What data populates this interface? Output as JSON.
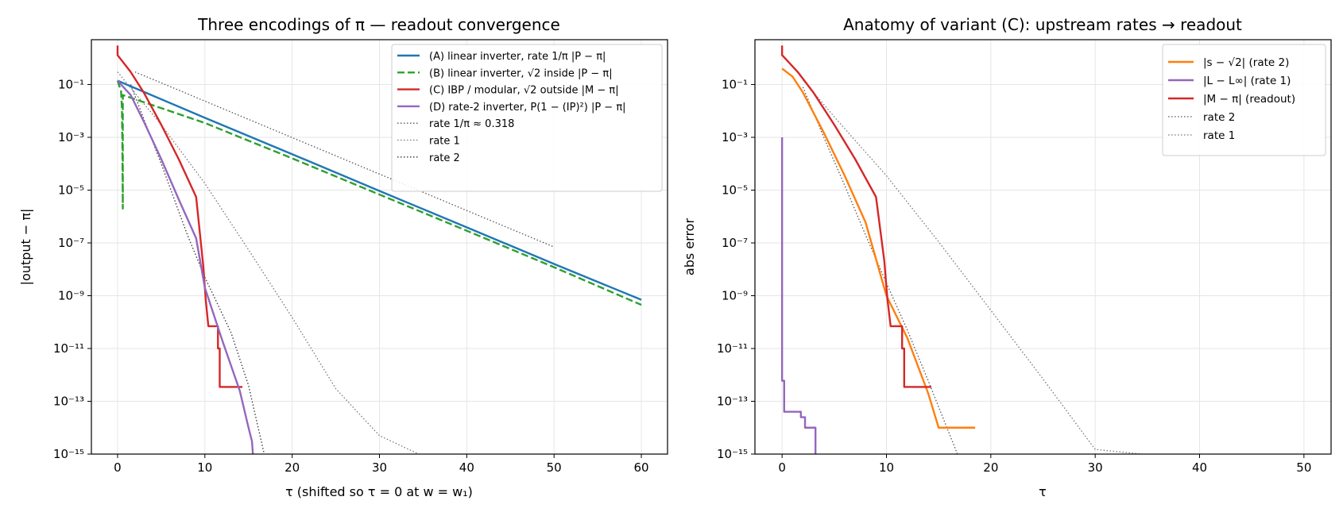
{
  "chart_data": [
    {
      "type": "line",
      "title": "Three encodings of π — readout convergence",
      "xlabel": "τ  (shifted so τ = 0 at w = w₁)",
      "ylabel": "|output − π|",
      "xlim": [
        -3,
        63
      ],
      "ylim": [
        1e-15,
        5
      ],
      "yscale": "log",
      "grid": true,
      "legend_position": "top-right",
      "x_ticks": [
        0,
        10,
        20,
        30,
        40,
        50,
        60
      ],
      "y_ticks": [
        {
          "value": 1e-15,
          "label": "10⁻¹⁵"
        },
        {
          "value": 1e-13,
          "label": "10⁻¹³"
        },
        {
          "value": 1e-11,
          "label": "10⁻¹¹"
        },
        {
          "value": 1e-09,
          "label": "10⁻⁹"
        },
        {
          "value": 1e-07,
          "label": "10⁻⁷"
        },
        {
          "value": 1e-05,
          "label": "10⁻⁵"
        },
        {
          "value": 0.001,
          "label": "10⁻³"
        },
        {
          "value": 0.1,
          "label": "10⁻¹"
        }
      ],
      "series": [
        {
          "name": "(A)  linear inverter, rate 1/π   |P − π|",
          "color": "#1f77b4",
          "style": "solid",
          "points": [
            [
              0,
              0.14
            ],
            [
              10,
              0.0055
            ],
            [
              20,
              0.00023
            ],
            [
              30,
              9.3e-06
            ],
            [
              40,
              3.9e-07
            ],
            [
              50,
              1.6e-08
            ],
            [
              60,
              7e-10
            ]
          ]
        },
        {
          "name": "(B)  linear inverter, √2 inside   |P − π|",
          "color": "#2ca02c",
          "style": "dashed",
          "points": [
            [
              0,
              0.14
            ],
            [
              0.4,
              0.055
            ],
            [
              0.5,
              0.012
            ],
            [
              0.55,
              0.0005
            ],
            [
              0.6,
              2e-06
            ],
            [
              0.6,
              0.0015
            ],
            [
              0.6,
              0.04
            ],
            [
              10,
              0.0035
            ],
            [
              20,
              0.00016
            ],
            [
              30,
              6.8e-06
            ],
            [
              40,
              2.9e-07
            ],
            [
              50,
              1.2e-08
            ],
            [
              60,
              4.5e-10
            ]
          ]
        },
        {
          "name": "(C)  IBP / modular, √2 outside   |M − π|",
          "color": "#d62728",
          "style": "solid",
          "points": [
            [
              0,
              3
            ],
            [
              0,
              1.3
            ],
            [
              0.5,
              0.8
            ],
            [
              1.5,
              0.3
            ],
            [
              3,
              0.05
            ],
            [
              5,
              0.003
            ],
            [
              7,
              0.00015
            ],
            [
              9,
              5.5e-06
            ],
            [
              9.8,
              1.5e-08
            ],
            [
              10,
              2e-09
            ],
            [
              10.1,
              7e-10
            ],
            [
              10.4,
              7e-11
            ],
            [
              11.5,
              7e-11
            ],
            [
              11.5,
              1e-11
            ],
            [
              11.7,
              1e-11
            ],
            [
              11.7,
              3.5e-13
            ],
            [
              14.3,
              3.5e-13
            ]
          ]
        },
        {
          "name": "(D)  rate-2 inverter, P(1 − (IP)²)   |P − π|",
          "color": "#9467bd",
          "style": "solid",
          "points": [
            [
              0,
              0.14
            ],
            [
              1.5,
              0.04
            ],
            [
              3,
              0.004
            ],
            [
              5,
              0.00015
            ],
            [
              7,
              4.5e-06
            ],
            [
              9,
              1.5e-07
            ],
            [
              10,
              2e-09
            ],
            [
              12,
              2e-11
            ],
            [
              14,
              2.5e-13
            ],
            [
              15,
              1e-14
            ],
            [
              15.4,
              3e-15
            ],
            [
              15.5,
              1e-15
            ]
          ]
        },
        {
          "name": "rate 1/π ≈ 0.318",
          "color": "#555555",
          "style": "dotted",
          "points": [
            [
              2,
              0.3
            ],
            [
              50,
              7e-08
            ]
          ]
        },
        {
          "name": "rate 1",
          "color": "#777777",
          "style": "dotted",
          "points": [
            [
              0,
              0.3
            ],
            [
              5,
              0.003
            ],
            [
              10,
              1.8e-05
            ],
            [
              15,
              5.5e-08
            ],
            [
              20,
              1.5e-10
            ],
            [
              25,
              3e-13
            ],
            [
              30,
              5e-15
            ],
            [
              34.5,
              1e-15
            ]
          ]
        },
        {
          "name": "rate 2",
          "color": "#333333",
          "style": "dotted",
          "points": [
            [
              1.5,
              0.1
            ],
            [
              3,
              0.005
            ],
            [
              5,
              0.0001
            ],
            [
              8,
              2e-07
            ],
            [
              10,
              5e-09
            ],
            [
              13,
              4e-11
            ],
            [
              15,
              4e-13
            ],
            [
              16.8,
              1e-15
            ]
          ]
        }
      ]
    },
    {
      "type": "line",
      "title": "Anatomy of variant (C):  upstream rates → readout",
      "xlabel": "τ",
      "ylabel": "abs error",
      "xlim": [
        -2.6,
        52.6
      ],
      "ylim": [
        1e-15,
        5
      ],
      "yscale": "log",
      "grid": true,
      "legend_position": "top-right",
      "x_ticks": [
        0,
        10,
        20,
        30,
        40,
        50
      ],
      "y_ticks": [
        {
          "value": 1e-15,
          "label": "10⁻¹⁵"
        },
        {
          "value": 1e-13,
          "label": "10⁻¹³"
        },
        {
          "value": 1e-11,
          "label": "10⁻¹¹"
        },
        {
          "value": 1e-09,
          "label": "10⁻⁹"
        },
        {
          "value": 1e-07,
          "label": "10⁻⁷"
        },
        {
          "value": 1e-05,
          "label": "10⁻⁵"
        },
        {
          "value": 0.001,
          "label": "10⁻³"
        },
        {
          "value": 0.1,
          "label": "10⁻¹"
        }
      ],
      "series": [
        {
          "name": "|s − √2|  (rate 2)",
          "color": "#ff7f0e",
          "style": "solid",
          "points": [
            [
              0,
              0.4
            ],
            [
              1,
              0.2
            ],
            [
              2,
              0.05
            ],
            [
              4,
              0.0015
            ],
            [
              6,
              3.5e-05
            ],
            [
              8,
              6e-07
            ],
            [
              10,
              1e-09
            ],
            [
              12,
              2.5e-11
            ],
            [
              14,
              2e-13
            ],
            [
              15,
              1e-14
            ],
            [
              15.8,
              1e-14
            ],
            [
              15.8,
              1e-14
            ],
            [
              18.5,
              1e-14
            ]
          ]
        },
        {
          "name": "|L − L∞|  (rate 1)",
          "color": "#9467bd",
          "style": "solid",
          "points": [
            [
              0,
              0.001
            ],
            [
              0,
              6e-13
            ],
            [
              0.2,
              6e-13
            ],
            [
              0.2,
              4e-14
            ],
            [
              1.8,
              4e-14
            ],
            [
              1.8,
              2.5e-14
            ],
            [
              2.2,
              2.5e-14
            ],
            [
              2.2,
              1e-14
            ],
            [
              3.2,
              1e-14
            ],
            [
              3.2,
              1e-15
            ]
          ]
        },
        {
          "name": "|M − π|  (readout)",
          "color": "#d62728",
          "style": "solid",
          "points": [
            [
              0,
              3
            ],
            [
              0,
              1.3
            ],
            [
              0.5,
              0.8
            ],
            [
              1.5,
              0.3
            ],
            [
              3,
              0.05
            ],
            [
              5,
              0.003
            ],
            [
              7,
              0.00015
            ],
            [
              9,
              5.5e-06
            ],
            [
              9.8,
              2e-08
            ],
            [
              10,
              2e-09
            ],
            [
              10.1,
              7e-10
            ],
            [
              10.4,
              7e-11
            ],
            [
              11.5,
              7e-11
            ],
            [
              11.5,
              1e-11
            ],
            [
              11.7,
              1e-11
            ],
            [
              11.7,
              3.5e-13
            ],
            [
              14.3,
              3.5e-13
            ]
          ]
        },
        {
          "name": "rate 2",
          "color": "#555555",
          "style": "dotted",
          "points": [
            [
              2,
              0.08
            ],
            [
              4,
              0.001
            ],
            [
              6,
              1.5e-05
            ],
            [
              8,
              2e-07
            ],
            [
              10,
              3e-09
            ],
            [
              12,
              5e-11
            ],
            [
              14,
              6e-13
            ],
            [
              16.8,
              1e-15
            ]
          ]
        },
        {
          "name": "rate 1",
          "color": "#777777",
          "style": "dotted",
          "points": [
            [
              2,
              0.15
            ],
            [
              5,
              0.006
            ],
            [
              10,
              3.5e-05
            ],
            [
              15,
              1.1e-07
            ],
            [
              20,
              2.8e-10
            ],
            [
              25,
              7e-13
            ],
            [
              30,
              1.5e-15
            ],
            [
              34.5,
              1e-15
            ]
          ]
        }
      ]
    }
  ]
}
